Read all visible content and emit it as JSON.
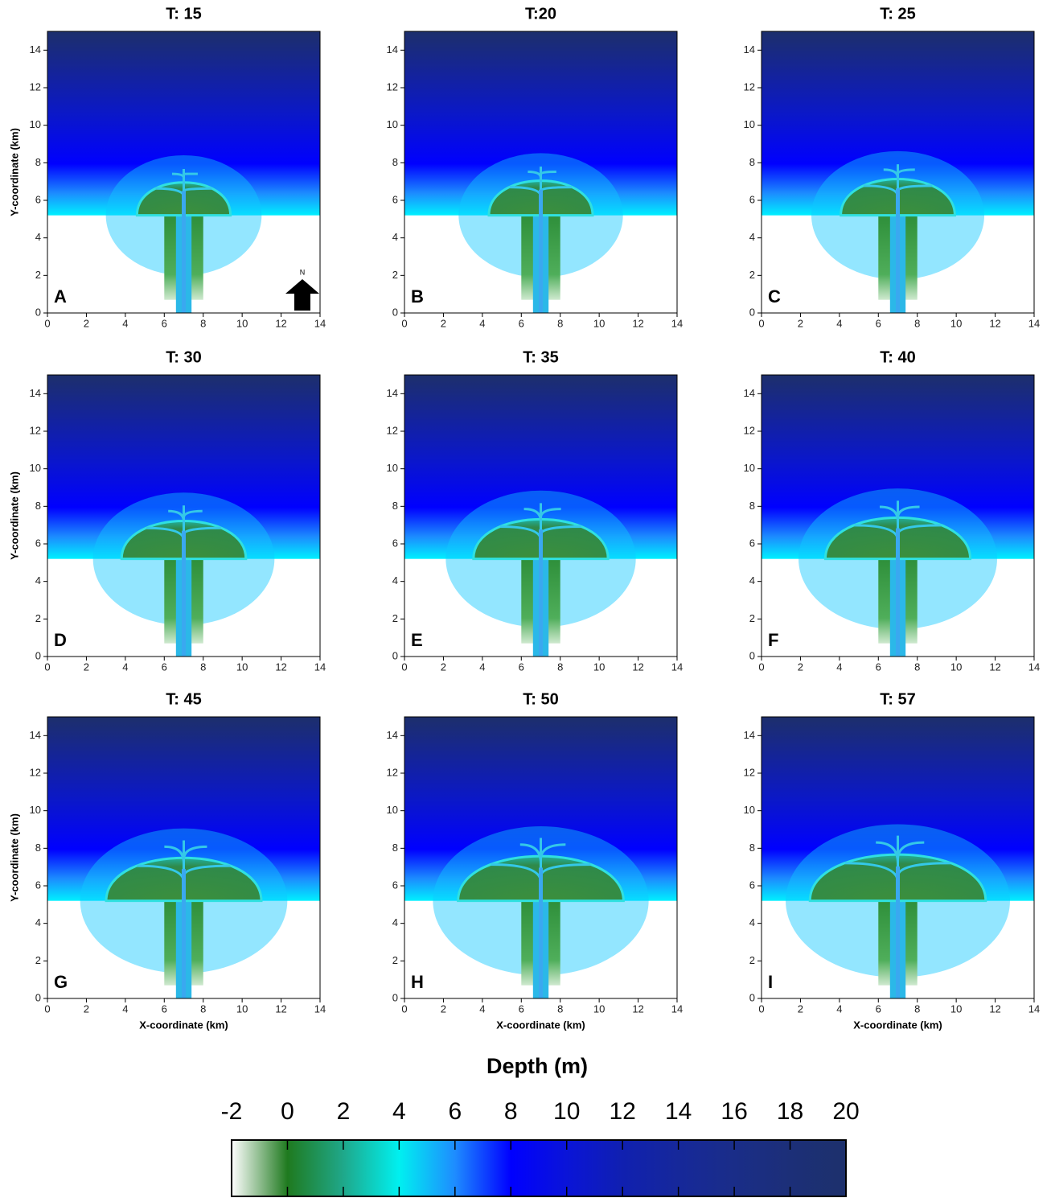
{
  "chart_data": [
    {
      "type": "heatmap",
      "title": "T: 15",
      "panel_label": "A",
      "north_label": "N",
      "y_label": "Y-coordinate (km)",
      "xlim": [
        0,
        14
      ],
      "ylim": [
        0,
        15
      ],
      "xticks": [
        0,
        2,
        4,
        6,
        8,
        10,
        12,
        14
      ],
      "yticks": [
        0,
        2,
        4,
        6,
        8,
        10,
        12,
        14
      ]
    },
    {
      "type": "heatmap",
      "title": "T:20",
      "panel_label": "B",
      "xlim": [
        0,
        14
      ],
      "ylim": [
        0,
        15
      ],
      "xticks": [
        0,
        2,
        4,
        6,
        8,
        10,
        12,
        14
      ],
      "yticks": [
        0,
        2,
        4,
        6,
        8,
        10,
        12,
        14
      ]
    },
    {
      "type": "heatmap",
      "title": "T: 25",
      "panel_label": "C",
      "xlim": [
        0,
        14
      ],
      "ylim": [
        0,
        15
      ],
      "xticks": [
        0,
        2,
        4,
        6,
        8,
        10,
        12,
        14
      ],
      "yticks": [
        0,
        2,
        4,
        6,
        8,
        10,
        12,
        14
      ]
    },
    {
      "type": "heatmap",
      "title": "T: 30",
      "panel_label": "D",
      "y_label": "Y-coordinate (km)",
      "xlim": [
        0,
        14
      ],
      "ylim": [
        0,
        15
      ],
      "xticks": [
        0,
        2,
        4,
        6,
        8,
        10,
        12,
        14
      ],
      "yticks": [
        0,
        2,
        4,
        6,
        8,
        10,
        12,
        14
      ]
    },
    {
      "type": "heatmap",
      "title": "T: 35",
      "panel_label": "E",
      "xlim": [
        0,
        14
      ],
      "ylim": [
        0,
        15
      ],
      "xticks": [
        0,
        2,
        4,
        6,
        8,
        10,
        12,
        14
      ],
      "yticks": [
        0,
        2,
        4,
        6,
        8,
        10,
        12,
        14
      ]
    },
    {
      "type": "heatmap",
      "title": "T: 40",
      "panel_label": "F",
      "xlim": [
        0,
        14
      ],
      "ylim": [
        0,
        15
      ],
      "xticks": [
        0,
        2,
        4,
        6,
        8,
        10,
        12,
        14
      ],
      "yticks": [
        0,
        2,
        4,
        6,
        8,
        10,
        12,
        14
      ]
    },
    {
      "type": "heatmap",
      "title": "T: 45",
      "panel_label": "G",
      "x_label": "X-coordinate (km)",
      "y_label": "Y-coordinate (km)",
      "xlim": [
        0,
        14
      ],
      "ylim": [
        0,
        15
      ],
      "xticks": [
        0,
        2,
        4,
        6,
        8,
        10,
        12,
        14
      ],
      "yticks": [
        0,
        2,
        4,
        6,
        8,
        10,
        12,
        14
      ]
    },
    {
      "type": "heatmap",
      "title": "T: 50",
      "panel_label": "H",
      "x_label": "X-coordinate (km)",
      "xlim": [
        0,
        14
      ],
      "ylim": [
        0,
        15
      ],
      "xticks": [
        0,
        2,
        4,
        6,
        8,
        10,
        12,
        14
      ],
      "yticks": [
        0,
        2,
        4,
        6,
        8,
        10,
        12,
        14
      ]
    },
    {
      "type": "heatmap",
      "title": "T: 57",
      "panel_label": "I",
      "x_label": "X-coordinate (km)",
      "xlim": [
        0,
        14
      ],
      "ylim": [
        0,
        15
      ],
      "xticks": [
        0,
        2,
        4,
        6,
        8,
        10,
        12,
        14
      ],
      "yticks": [
        0,
        2,
        4,
        6,
        8,
        10,
        12,
        14
      ]
    },
    {
      "type": "colorbar",
      "title": "Depth (m)",
      "clim": [
        -2,
        20
      ],
      "ticks": [
        -2,
        0,
        2,
        4,
        6,
        8,
        10,
        12,
        14,
        16,
        18,
        20
      ],
      "colors": [
        "#ffffff",
        "#1f7a1f",
        "#1fa88a",
        "#00f0f0",
        "#1e8cff",
        "#0000ff",
        "#0a14d8",
        "#1020b0",
        "#16289a",
        "#1a2d88",
        "#1c2f78",
        "#1d306c"
      ]
    }
  ]
}
